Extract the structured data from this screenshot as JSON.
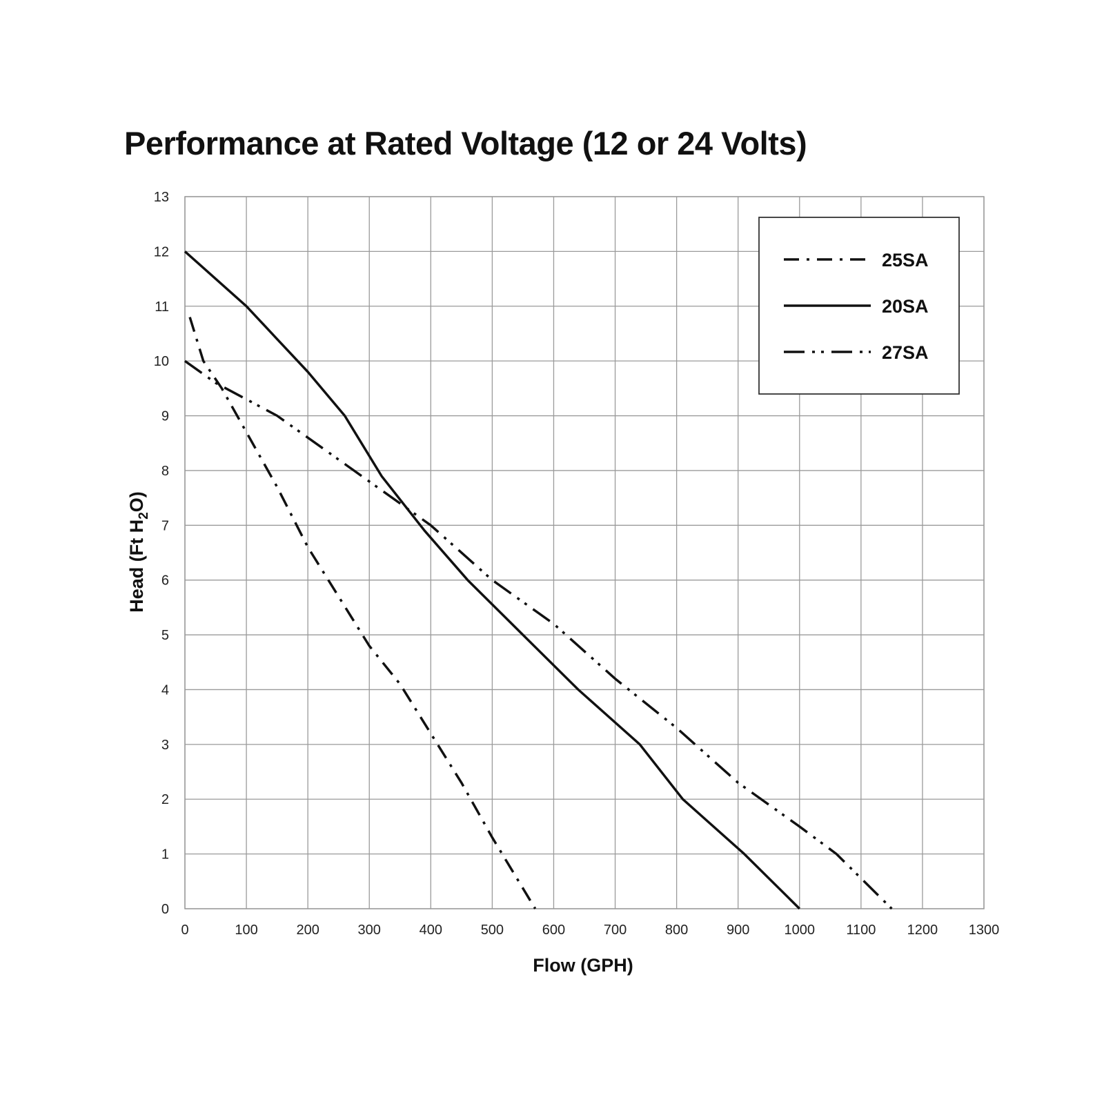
{
  "chart_data": {
    "type": "line",
    "title": "Performance at Rated Voltage (12 or 24 Volts)",
    "xlabel": "Flow (GPH)",
    "ylabel_parts": [
      "Head (Ft H",
      "2",
      "O)"
    ],
    "xlim": [
      0,
      1300
    ],
    "ylim": [
      0,
      13
    ],
    "x_ticks": [
      0,
      100,
      200,
      300,
      400,
      500,
      600,
      700,
      800,
      900,
      1000,
      1100,
      1200,
      1300
    ],
    "y_ticks": [
      0,
      1,
      2,
      3,
      4,
      5,
      6,
      7,
      8,
      9,
      10,
      11,
      12,
      13
    ],
    "grid": true,
    "legend_position": "top-right",
    "series": [
      {
        "name": "25SA",
        "line_style": "dash-dot",
        "points": [
          [
            8,
            10.8
          ],
          [
            30,
            10.0
          ],
          [
            60,
            9.5
          ],
          [
            100,
            8.7
          ],
          [
            150,
            7.7
          ],
          [
            200,
            6.6
          ],
          [
            250,
            5.7
          ],
          [
            300,
            4.8
          ],
          [
            350,
            4.1
          ],
          [
            400,
            3.2
          ],
          [
            450,
            2.3
          ],
          [
            500,
            1.3
          ],
          [
            570,
            0
          ]
        ]
      },
      {
        "name": "20SA",
        "line_style": "solid",
        "points": [
          [
            0,
            12.0
          ],
          [
            100,
            11.0
          ],
          [
            150,
            10.4
          ],
          [
            200,
            9.8
          ],
          [
            260,
            9.0
          ],
          [
            320,
            7.9
          ],
          [
            390,
            6.9
          ],
          [
            460,
            6.0
          ],
          [
            550,
            5.0
          ],
          [
            640,
            4.0
          ],
          [
            740,
            3.0
          ],
          [
            810,
            2.0
          ],
          [
            910,
            1.0
          ],
          [
            1000,
            0
          ]
        ]
      },
      {
        "name": "27SA",
        "line_style": "dash-dot-dot",
        "points": [
          [
            0,
            10.0
          ],
          [
            50,
            9.6
          ],
          [
            100,
            9.3
          ],
          [
            150,
            9.0
          ],
          [
            200,
            8.6
          ],
          [
            300,
            7.8
          ],
          [
            400,
            7.0
          ],
          [
            500,
            6.0
          ],
          [
            600,
            5.2
          ],
          [
            700,
            4.2
          ],
          [
            800,
            3.3
          ],
          [
            900,
            2.3
          ],
          [
            1000,
            1.5
          ],
          [
            1060,
            1.0
          ],
          [
            1150,
            0
          ]
        ]
      }
    ]
  }
}
